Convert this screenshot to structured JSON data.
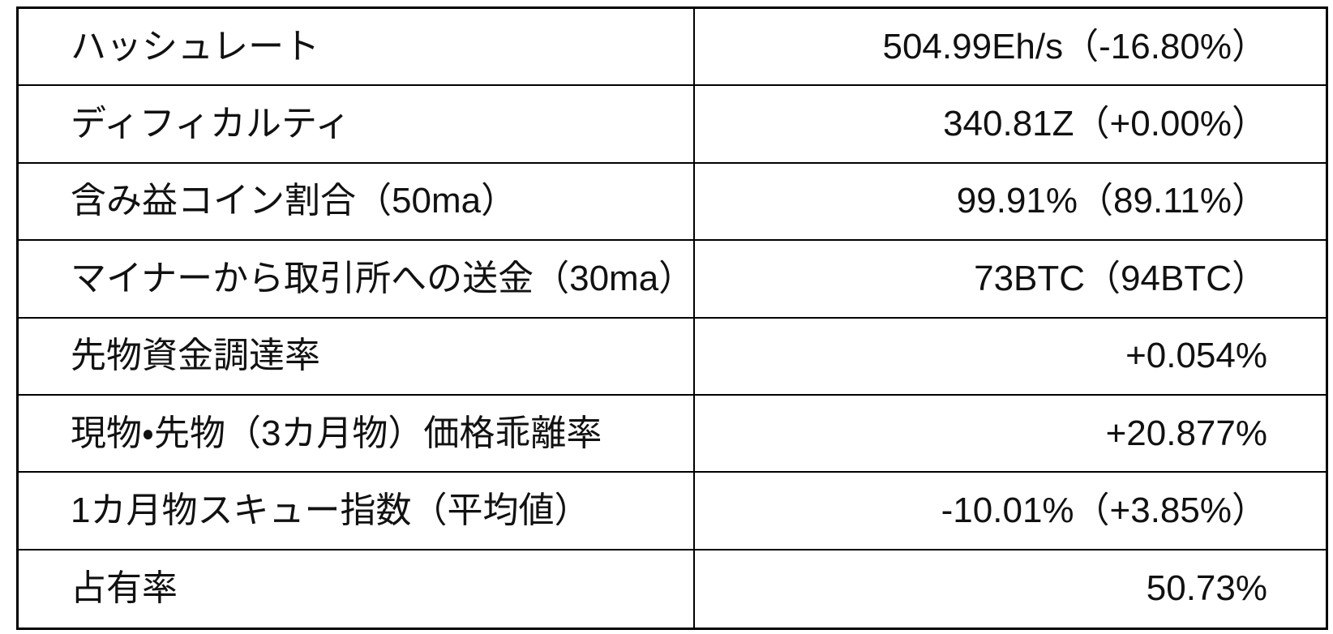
{
  "page": {
    "background_color": "#ffffff",
    "text_color": "#111111",
    "border_color": "#000000"
  },
  "table": {
    "description": "bitcoin-metrics-table",
    "rows": [
      {
        "label": "ハッシュレート",
        "value": "504.99Eh/s（-16.80%）"
      },
      {
        "label": "ディフィカルティ",
        "value": "340.81Z（+0.00%）"
      },
      {
        "label": "含み益コイン割合（50ma）",
        "value": "99.91%（89.11%）"
      },
      {
        "label": "マイナーから取引所への送金（30ma）",
        "value": "73BTC（94BTC）"
      },
      {
        "label": "先物資金調達率",
        "value": "+0.054%"
      },
      {
        "label": "現物・先物（3カ月物）価格乖離率",
        "value": "+20.877%"
      },
      {
        "label": "1カ月物スキュー指数（平均値）",
        "value": "-10.01%（+3.85%）"
      },
      {
        "label": "占有率",
        "value": "50.73%"
      }
    ]
  }
}
